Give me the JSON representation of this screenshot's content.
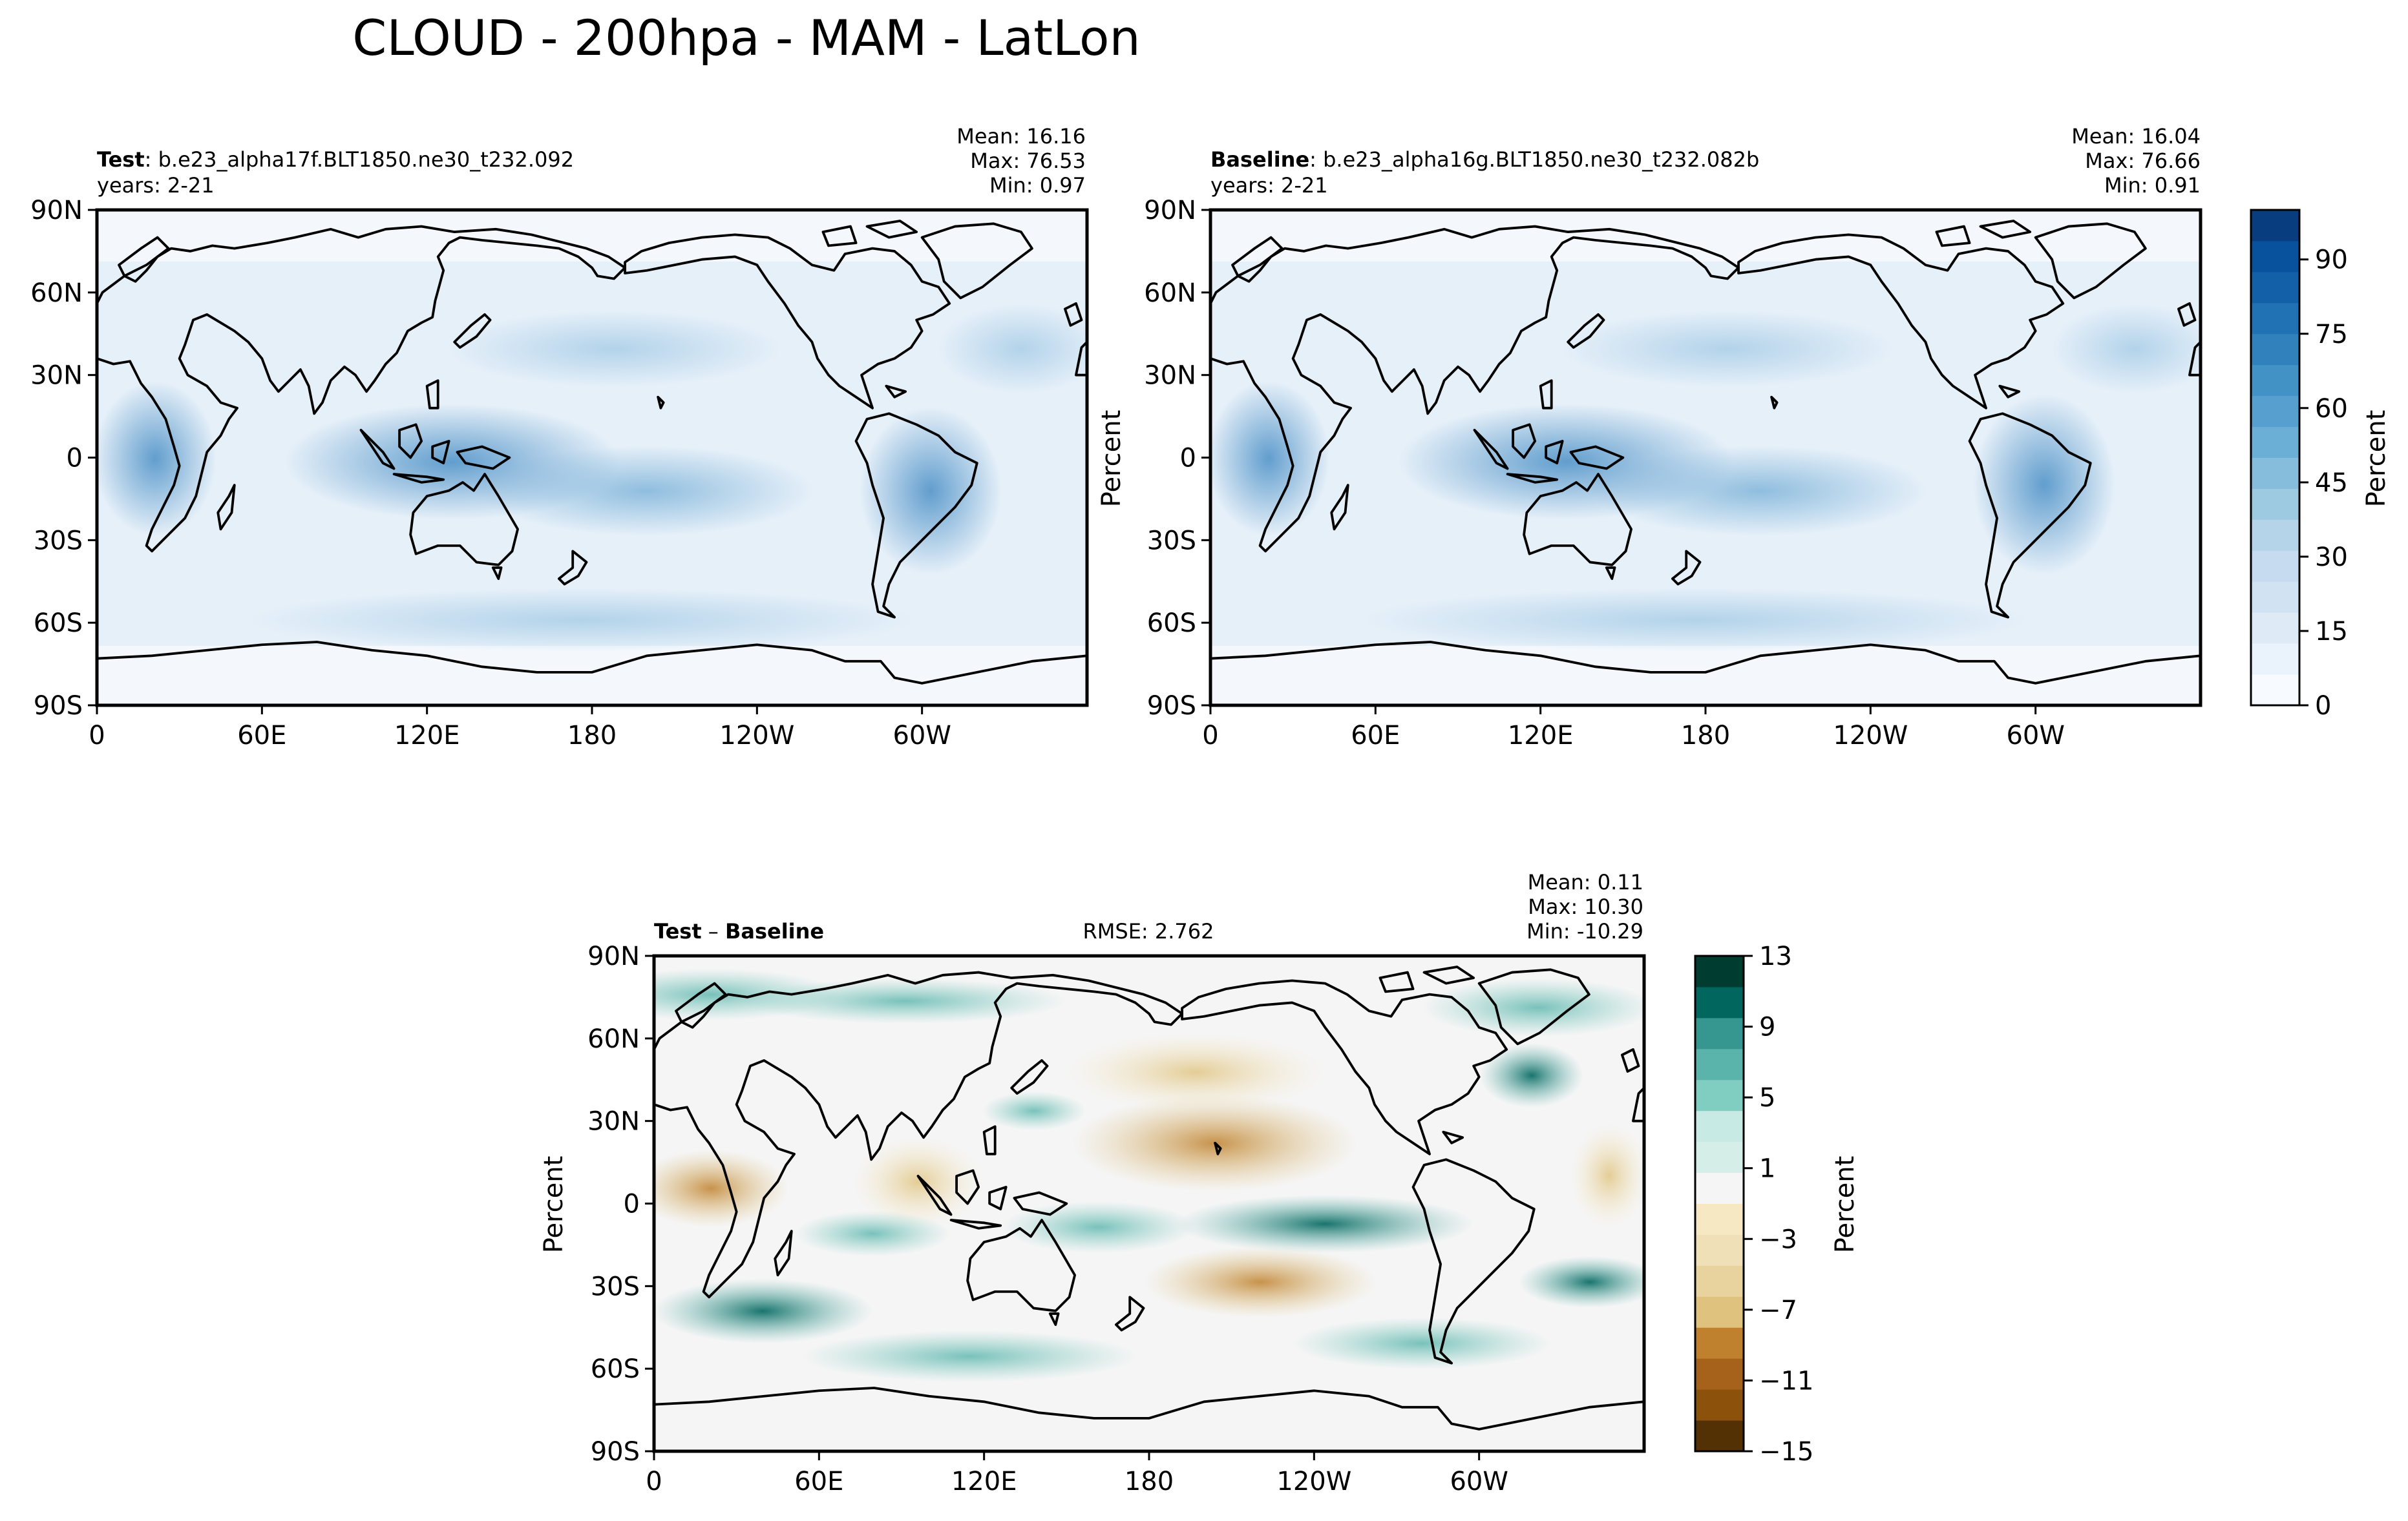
{
  "figure": {
    "title": "CLOUD - 200hpa - MAM - LatLon"
  },
  "panels": {
    "test": {
      "label_bold": "Test",
      "label_rest": ": b.e23_alpha17f.BLT1850.ne30_t232.092",
      "years": "years: 2-21",
      "mean": "Mean: 16.16",
      "max": "Max: 76.53",
      "min": "Min:  0.97"
    },
    "baseline": {
      "label_bold": "Baseline",
      "label_rest": ": b.e23_alpha16g.BLT1850.ne30_t232.082b",
      "years": "years: 2-21",
      "ylabel": "Percent",
      "mean": "Mean: 16.04",
      "max": "Max: 76.66",
      "min": "Min:  0.91"
    },
    "diff": {
      "label_bold_1": "Test",
      "label_mid": " – ",
      "label_bold_2": "Baseline",
      "rmse": "RMSE: 2.762",
      "ylabel": "Percent",
      "mean": "Mean:  0.11",
      "max": "Max: 10.30",
      "min": "Min: -10.29"
    }
  },
  "chart_data": [
    {
      "type": "heatmap",
      "name": "test",
      "x_ticks": [
        "0",
        "60E",
        "120E",
        "180",
        "120W",
        "60W"
      ],
      "y_ticks": [
        "90N",
        "60N",
        "30N",
        "0",
        "30S",
        "60S",
        "90S"
      ],
      "xlim": [
        0,
        360
      ],
      "ylim": [
        -90,
        90
      ],
      "mean": 16.16,
      "max": 76.53,
      "min": 0.97
    },
    {
      "type": "heatmap",
      "name": "baseline",
      "x_ticks": [
        "0",
        "60E",
        "120E",
        "180",
        "120W",
        "60W"
      ],
      "y_ticks": [
        "90N",
        "60N",
        "30N",
        "0",
        "30S",
        "60S",
        "90S"
      ],
      "xlim": [
        0,
        360
      ],
      "ylim": [
        -90,
        90
      ],
      "ylabel": "Percent",
      "mean": 16.04,
      "max": 76.66,
      "min": 0.91
    },
    {
      "type": "heatmap",
      "name": "diff",
      "x_ticks": [
        "0",
        "60E",
        "120E",
        "180",
        "120W",
        "60W"
      ],
      "y_ticks": [
        "90N",
        "60N",
        "30N",
        "0",
        "30S",
        "60S",
        "90S"
      ],
      "xlim": [
        0,
        360
      ],
      "ylim": [
        -90,
        90
      ],
      "ylabel": "Percent",
      "mean": 0.11,
      "max": 10.3,
      "min": -10.29,
      "rmse": 2.762
    }
  ],
  "colorbars": {
    "abs": {
      "label": "Percent",
      "range": [
        0,
        100
      ],
      "tick_values": [
        0,
        15,
        30,
        45,
        60,
        75,
        90
      ],
      "tick_labels": [
        "0",
        "15",
        "30",
        "45",
        "60",
        "75",
        "90"
      ],
      "colors": [
        "#f7fbff",
        "#eaf2fb",
        "#deebf7",
        "#d1e3f3",
        "#c6dbef",
        "#b5d4e9",
        "#9ecae1",
        "#86bcdc",
        "#6baed6",
        "#569fce",
        "#4292c6",
        "#3181bd",
        "#2171b5",
        "#1460a8",
        "#08519c",
        "#083e80"
      ]
    },
    "diff": {
      "label": "Percent",
      "range": [
        -15,
        13
      ],
      "tick_values": [
        -15,
        -11,
        -7,
        -3,
        1,
        5,
        9,
        13
      ],
      "tick_labels": [
        "−15",
        "−11",
        "−7",
        "−3",
        "1",
        "5",
        "9",
        "13"
      ],
      "colors": [
        "#543005",
        "#8c510a",
        "#a6611a",
        "#bf812d",
        "#dfc27d",
        "#e8d29d",
        "#f0e0b8",
        "#f6e8c3",
        "#f5f5f5",
        "#d6eee8",
        "#c7eae5",
        "#80cdc1",
        "#5ab4ac",
        "#35978f",
        "#01665e",
        "#003c30"
      ]
    }
  }
}
